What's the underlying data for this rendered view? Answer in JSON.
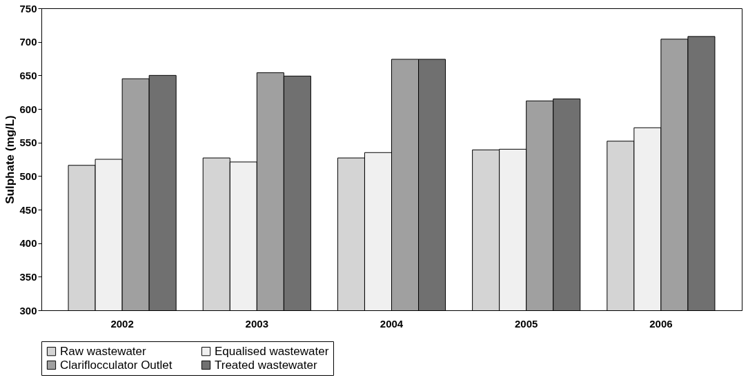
{
  "chart_data": {
    "type": "bar",
    "ylabel": "Sulphate (mg/L)",
    "categories": [
      "2002",
      "2003",
      "2004",
      "2005",
      "2006"
    ],
    "series": [
      {
        "name": "Raw wastewater",
        "color": "#d4d4d4",
        "values": [
          516,
          527,
          527,
          539,
          552
        ]
      },
      {
        "name": "Equalised wastewater",
        "color": "#f0f0f0",
        "values": [
          525,
          521,
          535,
          540,
          572
        ]
      },
      {
        "name": "Clariflocculator Outlet",
        "color": "#a0a0a0",
        "values": [
          645,
          654,
          674,
          612,
          704
        ]
      },
      {
        "name": "Treated wastewater",
        "color": "#707070",
        "values": [
          650,
          649,
          674,
          615,
          708
        ]
      }
    ],
    "ylim": [
      300,
      750
    ],
    "yticks": [
      300,
      350,
      400,
      450,
      500,
      550,
      600,
      650,
      700,
      750
    ],
    "grid": false,
    "legend": "bottom"
  }
}
